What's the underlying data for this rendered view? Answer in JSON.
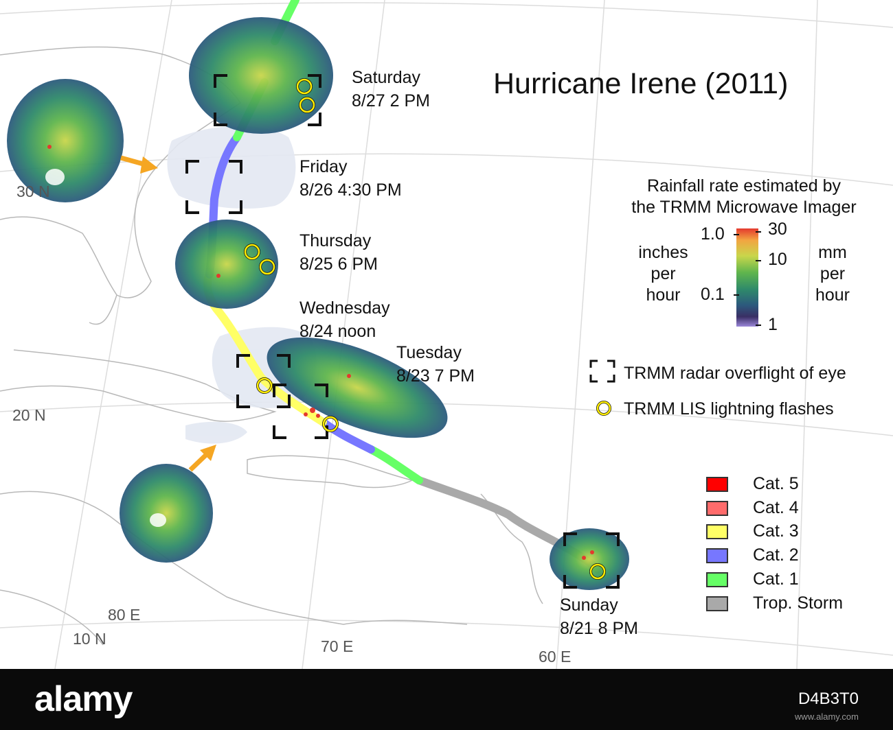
{
  "title": "Hurricane Irene (2011)",
  "days": [
    {
      "day": "Saturday",
      "datetime": "8/27 2 PM"
    },
    {
      "day": "Friday",
      "datetime": "8/26 4:30 PM"
    },
    {
      "day": "Thursday",
      "datetime": "8/25 6 PM"
    },
    {
      "day": "Wednesday",
      "datetime": "8/24 noon"
    },
    {
      "day": "Tuesday",
      "datetime": "8/23 7 PM"
    },
    {
      "day": "Sunday",
      "datetime": "8/21 8 PM"
    }
  ],
  "grid_labels": {
    "lat_30": "30 N",
    "lat_20": "20 N",
    "lat_10": "10 N",
    "lon_80": "80 E",
    "lon_70": "70 E",
    "lon_60": "60 E"
  },
  "rain_legend": {
    "heading_line1": "Rainfall rate estimated by",
    "heading_line2": "the TRMM Microwave Imager",
    "left_units": [
      "inches",
      "per",
      "hour"
    ],
    "right_units": [
      "mm",
      "per",
      "hour"
    ],
    "left_ticks": [
      "1.0",
      "0.1"
    ],
    "right_ticks": [
      "30",
      "10",
      "1"
    ],
    "gradient_colors": [
      "#e43a2e",
      "#f2a541",
      "#c9d64b",
      "#5fb54d",
      "#2f8a6a",
      "#2c5a7d",
      "#3a2f65",
      "#9b87d8"
    ]
  },
  "symbol_legend": {
    "radar_label": "TRMM radar overflight of eye",
    "lightning_label": "TRMM LIS lightning flashes"
  },
  "category_legend": [
    {
      "label": "Cat. 5",
      "color": "#ff0000"
    },
    {
      "label": "Cat. 4",
      "color": "#ff6b6b"
    },
    {
      "label": "Cat. 3",
      "color": "#ffff66"
    },
    {
      "label": "Cat. 2",
      "color": "#7777ff"
    },
    {
      "label": "Cat. 1",
      "color": "#66ff66"
    },
    {
      "label": "Trop. Storm",
      "color": "#a9a9a9"
    }
  ],
  "footer": {
    "brand": "alamy",
    "image_id": "D4B3T0",
    "url": "www.alamy.com"
  }
}
